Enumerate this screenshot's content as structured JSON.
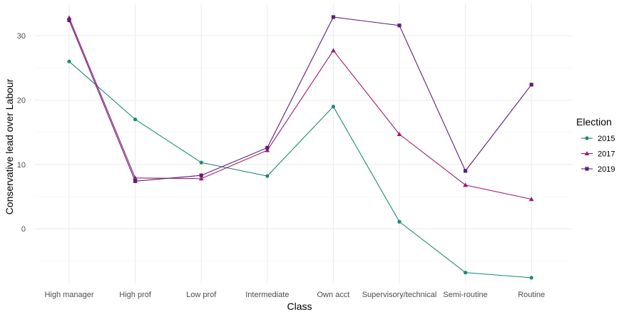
{
  "chart_data": {
    "type": "line",
    "xlabel": "Class",
    "ylabel": "Conservative lead over Labour",
    "categories": [
      "High manager",
      "High prof",
      "Low prof",
      "Intermediate",
      "Own acct",
      "Supervisory/technical",
      "Semi-routine",
      "Routine"
    ],
    "ylim": [
      -8.5,
      35
    ],
    "yticks": [
      0,
      10,
      20,
      30
    ],
    "grid": true,
    "legend": {
      "title": "Election",
      "placement": "right"
    },
    "series": [
      {
        "name": "2015",
        "color": "#1b8a76",
        "marker": "circle",
        "values": [
          26,
          17,
          10.3,
          8.2,
          19,
          1.1,
          -6.8,
          -7.6
        ]
      },
      {
        "name": "2017",
        "color": "#a0196b",
        "marker": "triangle",
        "values": [
          32.8,
          7.9,
          7.8,
          12.2,
          27.7,
          14.7,
          6.8,
          4.6
        ]
      },
      {
        "name": "2019",
        "color": "#5c1e7a",
        "marker": "square",
        "values": [
          32.4,
          7.4,
          8.3,
          12.6,
          32.9,
          31.6,
          9.0,
          22.4
        ]
      }
    ]
  }
}
